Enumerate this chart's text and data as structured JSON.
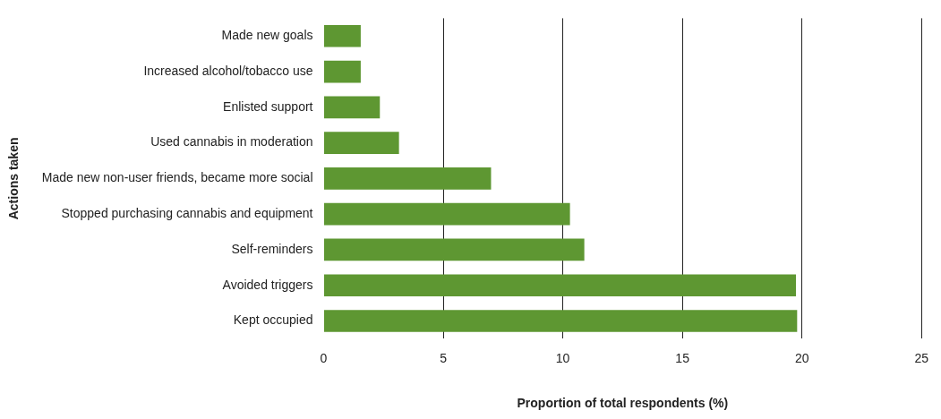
{
  "chart_data": {
    "type": "bar",
    "orientation": "horizontal",
    "xlabel": "Proportion of total respondents (%)",
    "ylabel": "Actions taken",
    "categories": [
      "Made new goals",
      "Increased alcohol/tobacco use",
      "Enlisted support",
      "Used cannabis in moderation",
      "Made new non-user friends, became more social",
      "Stopped purchasing cannabis and equipment",
      "Self-reminders",
      "Avoided triggers",
      "Kept occupied"
    ],
    "values": [
      1.55,
      1.55,
      2.35,
      3.15,
      7.0,
      10.3,
      10.9,
      19.75,
      19.8
    ],
    "color": "#5e9732",
    "xlim": [
      0,
      25
    ],
    "xticks": [
      0,
      5,
      10,
      15,
      20,
      25
    ],
    "grid": "x",
    "legend": false
  }
}
